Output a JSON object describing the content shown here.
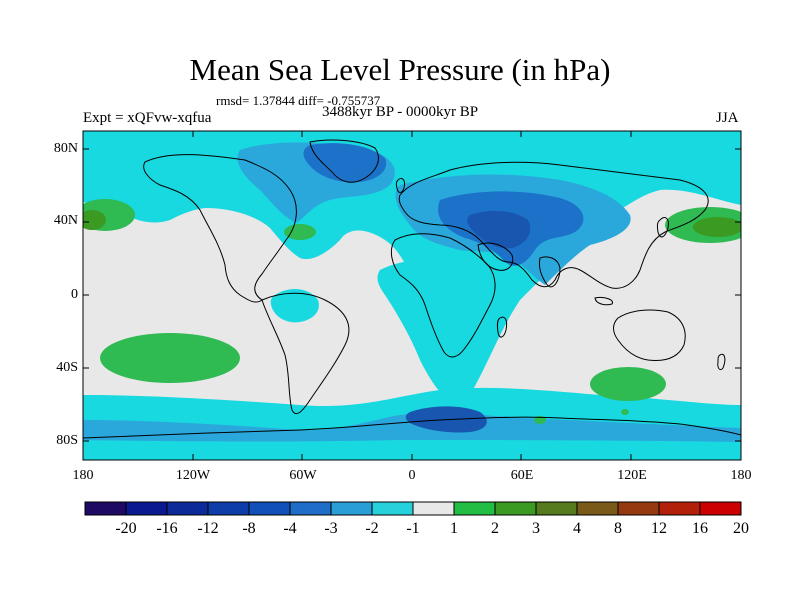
{
  "title": "Mean Sea Level Pressure (in hPa)",
  "stats": "rmsd= 1.37844 diff= -0.755737",
  "experiment": "Expt = xQFvw-xqfua",
  "period": "3488kyr BP - 0000kyr BP",
  "season": "JJA",
  "lat_labels": [
    "80N",
    "40N",
    "0",
    "40S",
    "80S"
  ],
  "lon_labels": [
    "180",
    "120W",
    "60W",
    "0",
    "60E",
    "120E",
    "180"
  ],
  "colorbar": {
    "tick_labels": [
      "-20",
      "-16",
      "-12",
      "-8",
      "-4",
      "-3",
      "-2",
      "-1",
      "1",
      "2",
      "3",
      "4",
      "8",
      "12",
      "16",
      "20"
    ],
    "colors": [
      "#1f0a63",
      "#0a1990",
      "#0d2a99",
      "#0d3da8",
      "#1050b8",
      "#1f6cc9",
      "#2a9ed6",
      "#27d1dc",
      "#e8e8e8",
      "#22be44",
      "#3a9a22",
      "#567a1e",
      "#7a5a18",
      "#953a10",
      "#b3200a",
      "#cc0000"
    ]
  },
  "colors": {
    "neutral": "#e8e8e8",
    "light_blue": "#18d8e0",
    "mid_blue": "#2aa8dc",
    "dark_blue": "#1c72c8",
    "darker_blue": "#1856b0",
    "green": "#2fba52",
    "dark_green": "#3a9a22",
    "olive": "#567a1e"
  }
}
